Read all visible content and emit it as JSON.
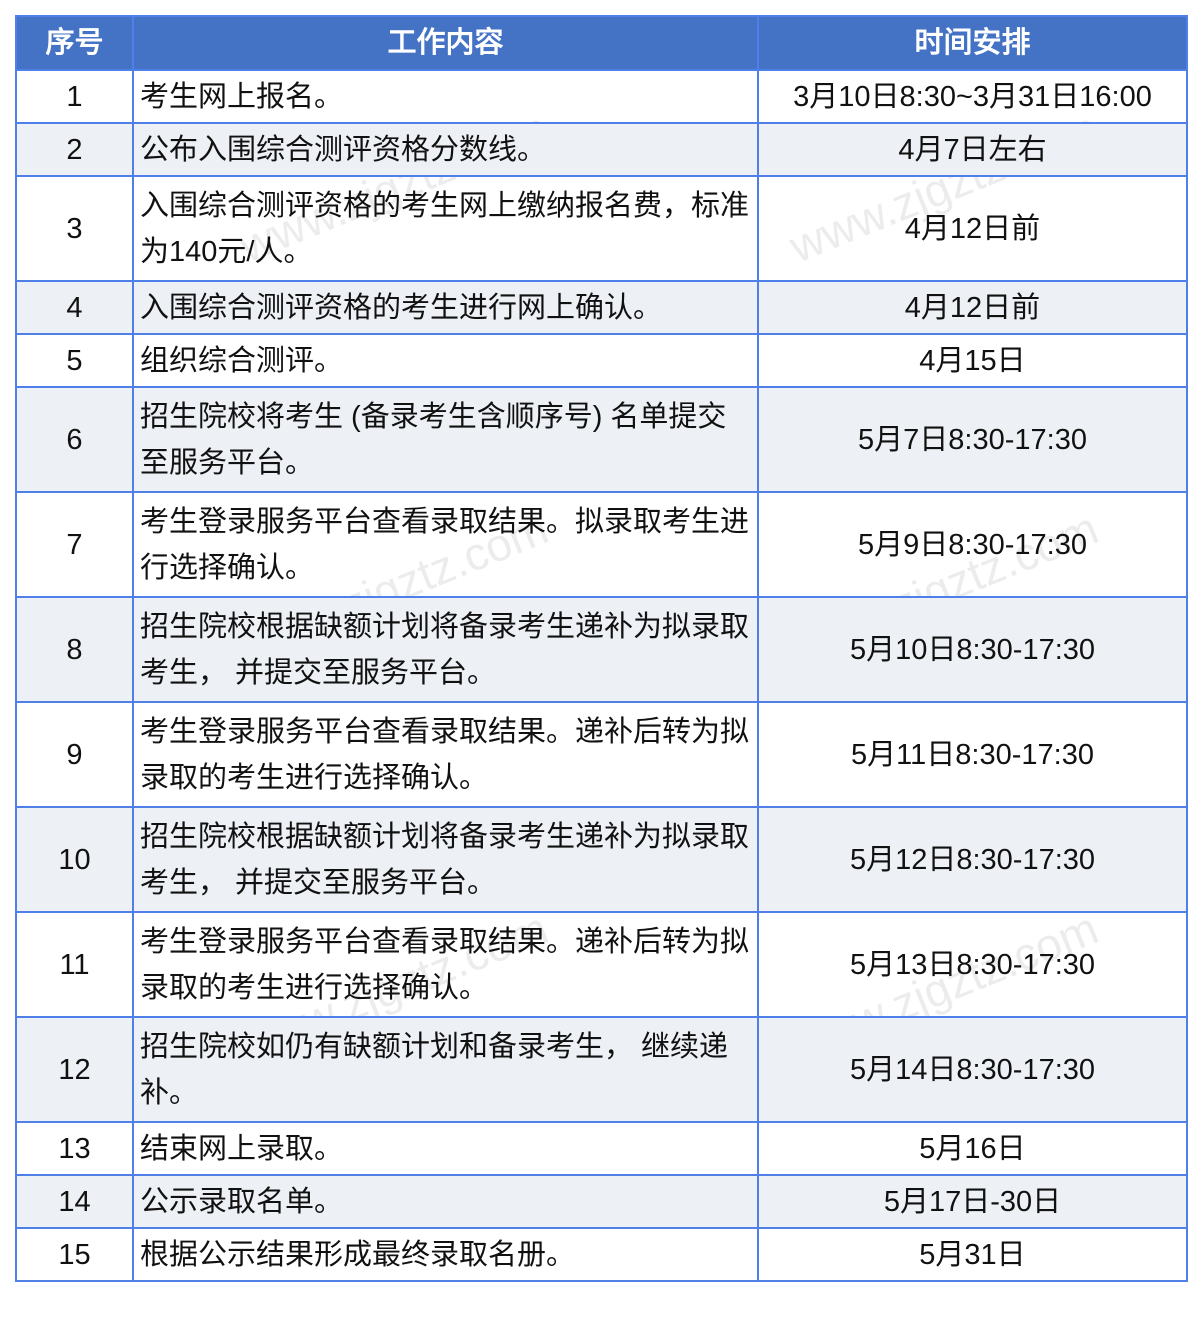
{
  "header": {
    "col_no": "序号",
    "col_content": "工作内容",
    "col_time": "时间安排"
  },
  "rows": [
    {
      "no": "1",
      "content": "考生网上报名。",
      "time": "3月10日8:30~3月31日16:00"
    },
    {
      "no": "2",
      "content": "公布入围综合测评资格分数线。",
      "time": "4月7日左右"
    },
    {
      "no": "3",
      "content": "入围综合测评资格的考生网上缴纳报名费，标准为140元/人。",
      "time": "4月12日前"
    },
    {
      "no": "4",
      "content": "入围综合测评资格的考生进行网上确认。",
      "time": "4月12日前"
    },
    {
      "no": "5",
      "content": "组织综合测评。",
      "time": "4月15日"
    },
    {
      "no": "6",
      "content": "招生院校将考生 (备录考生含顺序号) 名单提交至服务平台。",
      "time": "5月7日8:30-17:30"
    },
    {
      "no": "7",
      "content": "考生登录服务平台查看录取结果。拟录取考生进行选择确认。",
      "time": "5月9日8:30-17:30"
    },
    {
      "no": "8",
      "content": "招生院校根据缺额计划将备录考生递补为拟录取考生， 并提交至服务平台。",
      "time": "5月10日8:30-17:30"
    },
    {
      "no": "9",
      "content": "考生登录服务平台查看录取结果。递补后转为拟录取的考生进行选择确认。",
      "time": "5月11日8:30-17:30"
    },
    {
      "no": "10",
      "content": "招生院校根据缺额计划将备录考生递补为拟录取考生， 并提交至服务平台。",
      "time": "5月12日8:30-17:30"
    },
    {
      "no": "11",
      "content": "考生登录服务平台查看录取结果。递补后转为拟录取的考生进行选择确认。",
      "time": "5月13日8:30-17:30"
    },
    {
      "no": "12",
      "content": "招生院校如仍有缺额计划和备录考生， 继续递补。",
      "time": "5月14日8:30-17:30"
    },
    {
      "no": "13",
      "content": "结束网上录取。",
      "time": "5月16日"
    },
    {
      "no": "14",
      "content": "公示录取名单。",
      "time": "5月17日-30日"
    },
    {
      "no": "15",
      "content": "根据公示结果形成最终录取名册。",
      "time": "5月31日"
    }
  ],
  "watermark": "www.zjgztz.com",
  "colors": {
    "header_bg": "#4472c4",
    "border": "#4f7fe8",
    "alt_row": "#edf0f4"
  }
}
